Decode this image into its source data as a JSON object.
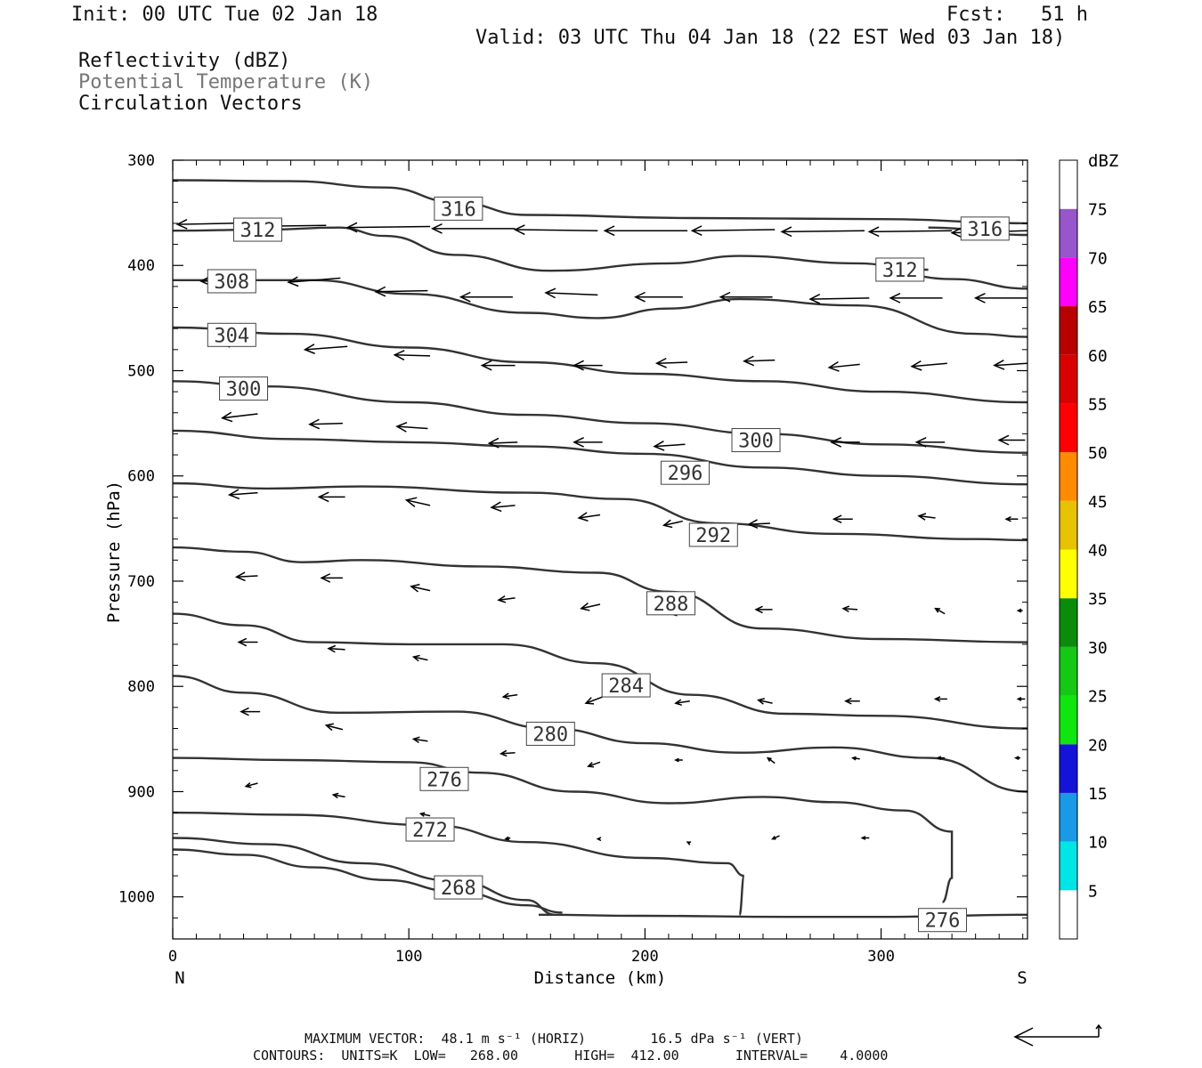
{
  "header": {
    "init": "Init: 00 UTC Tue 02 Jan 18",
    "fcst": "Fcst:   51 h",
    "valid": "Valid: 03 UTC Thu 04 Jan 18 (22 EST Wed 03 Jan 18)",
    "fields": [
      "Reflectivity (dBZ)",
      "Potential Temperature (K)",
      "Circulation Vectors"
    ]
  },
  "footer": {
    "line1": "MAXIMUM VECTOR:  48.1 m s⁻¹ (HORIZ)        16.5 dPa s⁻¹ (VERT)",
    "line2": "CONTOURS:  UNITS=K  LOW=   268.00       HIGH=  412.00       INTERVAL=    4.0000"
  },
  "colors": {
    "contour": "#333333",
    "frame": "#000000",
    "colorbar": [
      "#ffffff",
      "#00e5e5",
      "#1a99e6",
      "#1414d9",
      "#0fe60f",
      "#14c814",
      "#0a8c0a",
      "#ffff00",
      "#e6c200",
      "#ff8c00",
      "#ff0000",
      "#d90000",
      "#b80000",
      "#ff00ff",
      "#9955cc",
      "#ffffff"
    ]
  },
  "chart_data": {
    "type": "cross-section (contour + vectors)",
    "xlabel": "Distance (km)",
    "ylabel": "Pressure (hPa)",
    "xlim": [
      0,
      362
    ],
    "ylim": [
      1040,
      300
    ],
    "x_ticks": [
      0,
      100,
      200,
      300
    ],
    "y_ticks": [
      300,
      400,
      500,
      600,
      700,
      800,
      900,
      1000
    ],
    "x_end_labels": [
      "N",
      "S"
    ],
    "colorbar": {
      "unit": "dBZ",
      "ticks": [
        5,
        10,
        15,
        20,
        25,
        30,
        35,
        40,
        45,
        50,
        55,
        60,
        65,
        70,
        75
      ]
    },
    "contours": [
      {
        "label": "316",
        "label_pos": [
          121,
          346
        ],
        "points": [
          [
            0,
            319
          ],
          [
            50,
            320
          ],
          [
            90,
            326
          ],
          [
            120,
            340
          ],
          [
            150,
            352
          ],
          [
            220,
            355
          ],
          [
            300,
            356
          ],
          [
            362,
            360
          ]
        ]
      },
      {
        "label": "312",
        "label_pos": [
          36,
          366
        ],
        "points": [
          [
            0,
            367
          ],
          [
            40,
            366
          ],
          [
            70,
            364
          ],
          [
            90,
            372
          ],
          [
            120,
            390
          ],
          [
            160,
            405
          ],
          [
            210,
            398
          ],
          [
            240,
            391
          ],
          [
            290,
            398
          ],
          [
            330,
            413
          ],
          [
            362,
            422
          ]
        ]
      },
      {
        "label": "316",
        "label_pos": [
          344,
          365
        ],
        "points": [
          [
            320,
            364
          ],
          [
            362,
            371
          ]
        ]
      },
      {
        "label": "312",
        "label_pos": [
          308,
          404
        ],
        "points": [
          [
            300,
            404
          ],
          [
            320,
            404
          ]
        ]
      },
      {
        "label": "308",
        "label_pos": [
          25,
          415
        ],
        "points": [
          [
            0,
            414
          ],
          [
            60,
            414
          ],
          [
            100,
            427
          ],
          [
            150,
            445
          ],
          [
            180,
            450
          ],
          [
            210,
            441
          ],
          [
            240,
            432
          ],
          [
            290,
            438
          ],
          [
            340,
            465
          ],
          [
            362,
            468
          ]
        ]
      },
      {
        "label": "304",
        "label_pos": [
          25,
          466
        ],
        "points": [
          [
            0,
            459
          ],
          [
            50,
            465
          ],
          [
            100,
            478
          ],
          [
            150,
            492
          ],
          [
            200,
            503
          ],
          [
            250,
            510
          ],
          [
            300,
            520
          ],
          [
            362,
            530
          ]
        ]
      },
      {
        "label": "300",
        "label_pos": [
          30,
          517
        ],
        "points": [
          [
            0,
            510
          ],
          [
            40,
            515
          ],
          [
            100,
            530
          ],
          [
            150,
            542
          ],
          [
            200,
            550
          ],
          [
            250,
            560
          ],
          [
            300,
            570
          ],
          [
            362,
            578
          ]
        ]
      },
      {
        "label": "300",
        "label_pos": [
          247,
          566
        ],
        "points": [
          [
            0,
            557
          ],
          [
            50,
            565
          ],
          [
            100,
            568
          ],
          [
            150,
            572
          ],
          [
            200,
            579
          ],
          [
            250,
            592
          ],
          [
            300,
            600
          ],
          [
            362,
            608
          ]
        ]
      },
      {
        "label": "296",
        "label_pos": [
          217,
          597
        ],
        "points": [
          [
            0,
            607
          ],
          [
            40,
            612
          ],
          [
            80,
            610
          ],
          [
            150,
            616
          ],
          [
            190,
            622
          ],
          [
            230,
            645
          ],
          [
            280,
            655
          ],
          [
            340,
            660
          ],
          [
            362,
            661
          ]
        ]
      },
      {
        "label": "292",
        "label_pos": [
          229,
          656
        ],
        "points": [
          [
            0,
            668
          ],
          [
            30,
            672
          ],
          [
            55,
            682
          ],
          [
            80,
            680
          ],
          [
            130,
            686
          ],
          [
            180,
            692
          ],
          [
            210,
            710
          ],
          [
            250,
            745
          ],
          [
            300,
            755
          ],
          [
            362,
            758
          ]
        ]
      },
      {
        "label": "288",
        "label_pos": [
          211,
          721
        ],
        "points": [
          [
            0,
            731
          ],
          [
            30,
            742
          ],
          [
            60,
            758
          ],
          [
            100,
            760
          ],
          [
            140,
            760
          ],
          [
            180,
            778
          ],
          [
            220,
            808
          ],
          [
            260,
            826
          ],
          [
            300,
            828
          ],
          [
            362,
            840
          ]
        ]
      },
      {
        "label": "284",
        "label_pos": [
          192,
          799
        ],
        "points": [
          [
            0,
            790
          ],
          [
            30,
            806
          ],
          [
            70,
            825
          ],
          [
            120,
            824
          ],
          [
            160,
            840
          ],
          [
            200,
            854
          ],
          [
            240,
            863
          ],
          [
            280,
            858
          ],
          [
            320,
            868
          ],
          [
            362,
            900
          ]
        ]
      },
      {
        "label": "280",
        "label_pos": [
          160,
          845
        ],
        "points": [
          [
            0,
            868
          ],
          [
            50,
            870
          ],
          [
            100,
            872
          ],
          [
            130,
            882
          ],
          [
            170,
            900
          ],
          [
            210,
            911
          ],
          [
            250,
            905
          ],
          [
            280,
            910
          ],
          [
            310,
            918
          ],
          [
            330,
            938
          ],
          [
            330,
            982
          ],
          [
            326,
            1005
          ]
        ]
      },
      {
        "label": "276",
        "label_pos": [
          115,
          888
        ],
        "points": [
          [
            0,
            920
          ],
          [
            50,
            922
          ],
          [
            110,
            932
          ],
          [
            150,
            948
          ],
          [
            200,
            963
          ],
          [
            235,
            968
          ],
          [
            242,
            980
          ],
          [
            240,
            1017
          ]
        ]
      },
      {
        "label": "272",
        "label_pos": [
          109,
          936
        ],
        "points": [
          [
            0,
            944
          ],
          [
            40,
            950
          ],
          [
            80,
            968
          ],
          [
            120,
            985
          ],
          [
            150,
            1003
          ],
          [
            162,
            1017
          ]
        ]
      },
      {
        "label": "268",
        "label_pos": [
          121,
          991
        ],
        "points": [
          [
            0,
            955
          ],
          [
            30,
            960
          ],
          [
            60,
            972
          ],
          [
            90,
            984
          ],
          [
            120,
            995
          ],
          [
            150,
            1008
          ],
          [
            165,
            1015
          ]
        ]
      },
      {
        "label": "276",
        "label_pos": [
          326,
          1022
        ],
        "points": [
          [
            155,
            1017
          ],
          [
            200,
            1018
          ],
          [
            260,
            1019
          ],
          [
            300,
            1019
          ],
          [
            362,
            1017
          ]
        ]
      }
    ],
    "vectors": [
      [
        2,
        361,
        42,
        -2
      ],
      [
        30,
        363,
        35,
        -1
      ],
      [
        74,
        364,
        35,
        -1
      ],
      [
        110,
        365,
        35,
        0
      ],
      [
        145,
        366,
        35,
        1
      ],
      [
        183,
        367,
        35,
        0
      ],
      [
        220,
        367,
        35,
        -1
      ],
      [
        258,
        368,
        35,
        -1
      ],
      [
        295,
        368,
        35,
        -1
      ],
      [
        330,
        369,
        32,
        -2
      ],
      [
        12,
        415,
        15,
        -1
      ],
      [
        49,
        416,
        22,
        -4
      ],
      [
        86,
        425,
        22,
        -1
      ],
      [
        122,
        430,
        22,
        0
      ],
      [
        158,
        426,
        22,
        2
      ],
      [
        196,
        430,
        20,
        0
      ],
      [
        232,
        430,
        22,
        0
      ],
      [
        270,
        432,
        25,
        -1
      ],
      [
        304,
        431,
        22,
        0
      ],
      [
        340,
        431,
        22,
        0
      ],
      [
        20,
        474,
        15,
        -3
      ],
      [
        56,
        480,
        18,
        -3
      ],
      [
        94,
        485,
        15,
        1
      ],
      [
        131,
        495,
        14,
        0
      ],
      [
        170,
        495,
        12,
        0
      ],
      [
        205,
        493,
        13,
        -1
      ],
      [
        242,
        491,
        13,
        -1
      ],
      [
        278,
        497,
        13,
        -3
      ],
      [
        313,
        496,
        15,
        -3
      ],
      [
        348,
        495,
        14,
        -2
      ],
      [
        21,
        545,
        15,
        -4
      ],
      [
        58,
        551,
        14,
        -1
      ],
      [
        95,
        553,
        13,
        2
      ],
      [
        134,
        569,
        12,
        -1
      ],
      [
        170,
        568,
        12,
        0
      ],
      [
        204,
        572,
        13,
        -2
      ],
      [
        242,
        568,
        14,
        0
      ],
      [
        279,
        568,
        12,
        0
      ],
      [
        315,
        568,
        12,
        0
      ],
      [
        350,
        566,
        11,
        0
      ],
      [
        24,
        618,
        12,
        -2
      ],
      [
        62,
        620,
        11,
        0
      ],
      [
        99,
        623,
        10,
        5
      ],
      [
        135,
        630,
        10,
        -2
      ],
      [
        172,
        640,
        9,
        -3
      ],
      [
        208,
        647,
        8,
        -4
      ],
      [
        244,
        646,
        9,
        -1
      ],
      [
        280,
        641,
        8,
        0
      ],
      [
        316,
        638,
        7,
        2
      ],
      [
        353,
        641,
        5,
        0
      ],
      [
        27,
        696,
        9,
        -1
      ],
      [
        63,
        697,
        9,
        0
      ],
      [
        101,
        705,
        8,
        4
      ],
      [
        138,
        718,
        7,
        -2
      ],
      [
        173,
        726,
        8,
        -4
      ],
      [
        211,
        731,
        6,
        -2
      ],
      [
        247,
        727,
        7,
        0
      ],
      [
        284,
        726,
        6,
        1
      ],
      [
        323,
        726,
        4,
        5
      ],
      [
        358,
        728,
        2,
        0
      ],
      [
        28,
        758,
        8,
        0
      ],
      [
        66,
        764,
        7,
        1
      ],
      [
        102,
        772,
        6,
        3
      ],
      [
        140,
        810,
        6,
        -2
      ],
      [
        175,
        816,
        7,
        -6
      ],
      [
        213,
        816,
        6,
        -2
      ],
      [
        248,
        813,
        6,
        3
      ],
      [
        285,
        814,
        6,
        0
      ],
      [
        323,
        812,
        5,
        0
      ],
      [
        358,
        812,
        3,
        0
      ],
      [
        29,
        824,
        8,
        0
      ],
      [
        65,
        837,
        7,
        4
      ],
      [
        102,
        850,
        6,
        2
      ],
      [
        139,
        864,
        6,
        -1
      ],
      [
        176,
        876,
        5,
        -4
      ],
      [
        213,
        870,
        3,
        0
      ],
      [
        252,
        868,
        3,
        5
      ],
      [
        288,
        868,
        3,
        1
      ],
      [
        324,
        868,
        3,
        0
      ],
      [
        357,
        868,
        2,
        0
      ],
      [
        31,
        895,
        5,
        -3
      ],
      [
        68,
        903,
        5,
        2
      ],
      [
        105,
        921,
        4,
        2
      ],
      [
        141,
        945,
        2,
        -1
      ],
      [
        180,
        945,
        1,
        0
      ],
      [
        218,
        948,
        1,
        1
      ],
      [
        254,
        945,
        3,
        -3
      ],
      [
        292,
        944,
        3,
        0
      ]
    ]
  }
}
